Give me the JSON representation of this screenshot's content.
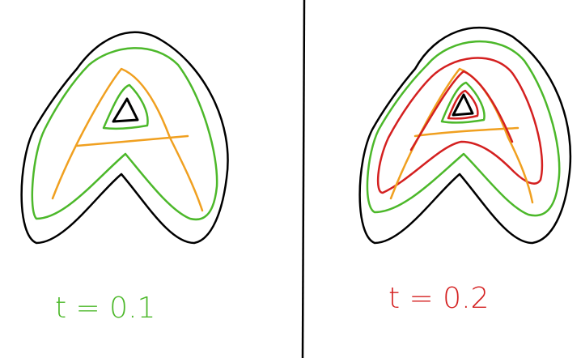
{
  "labels": {
    "left": "t = 0.1",
    "right": "t = 0.2"
  }
}
